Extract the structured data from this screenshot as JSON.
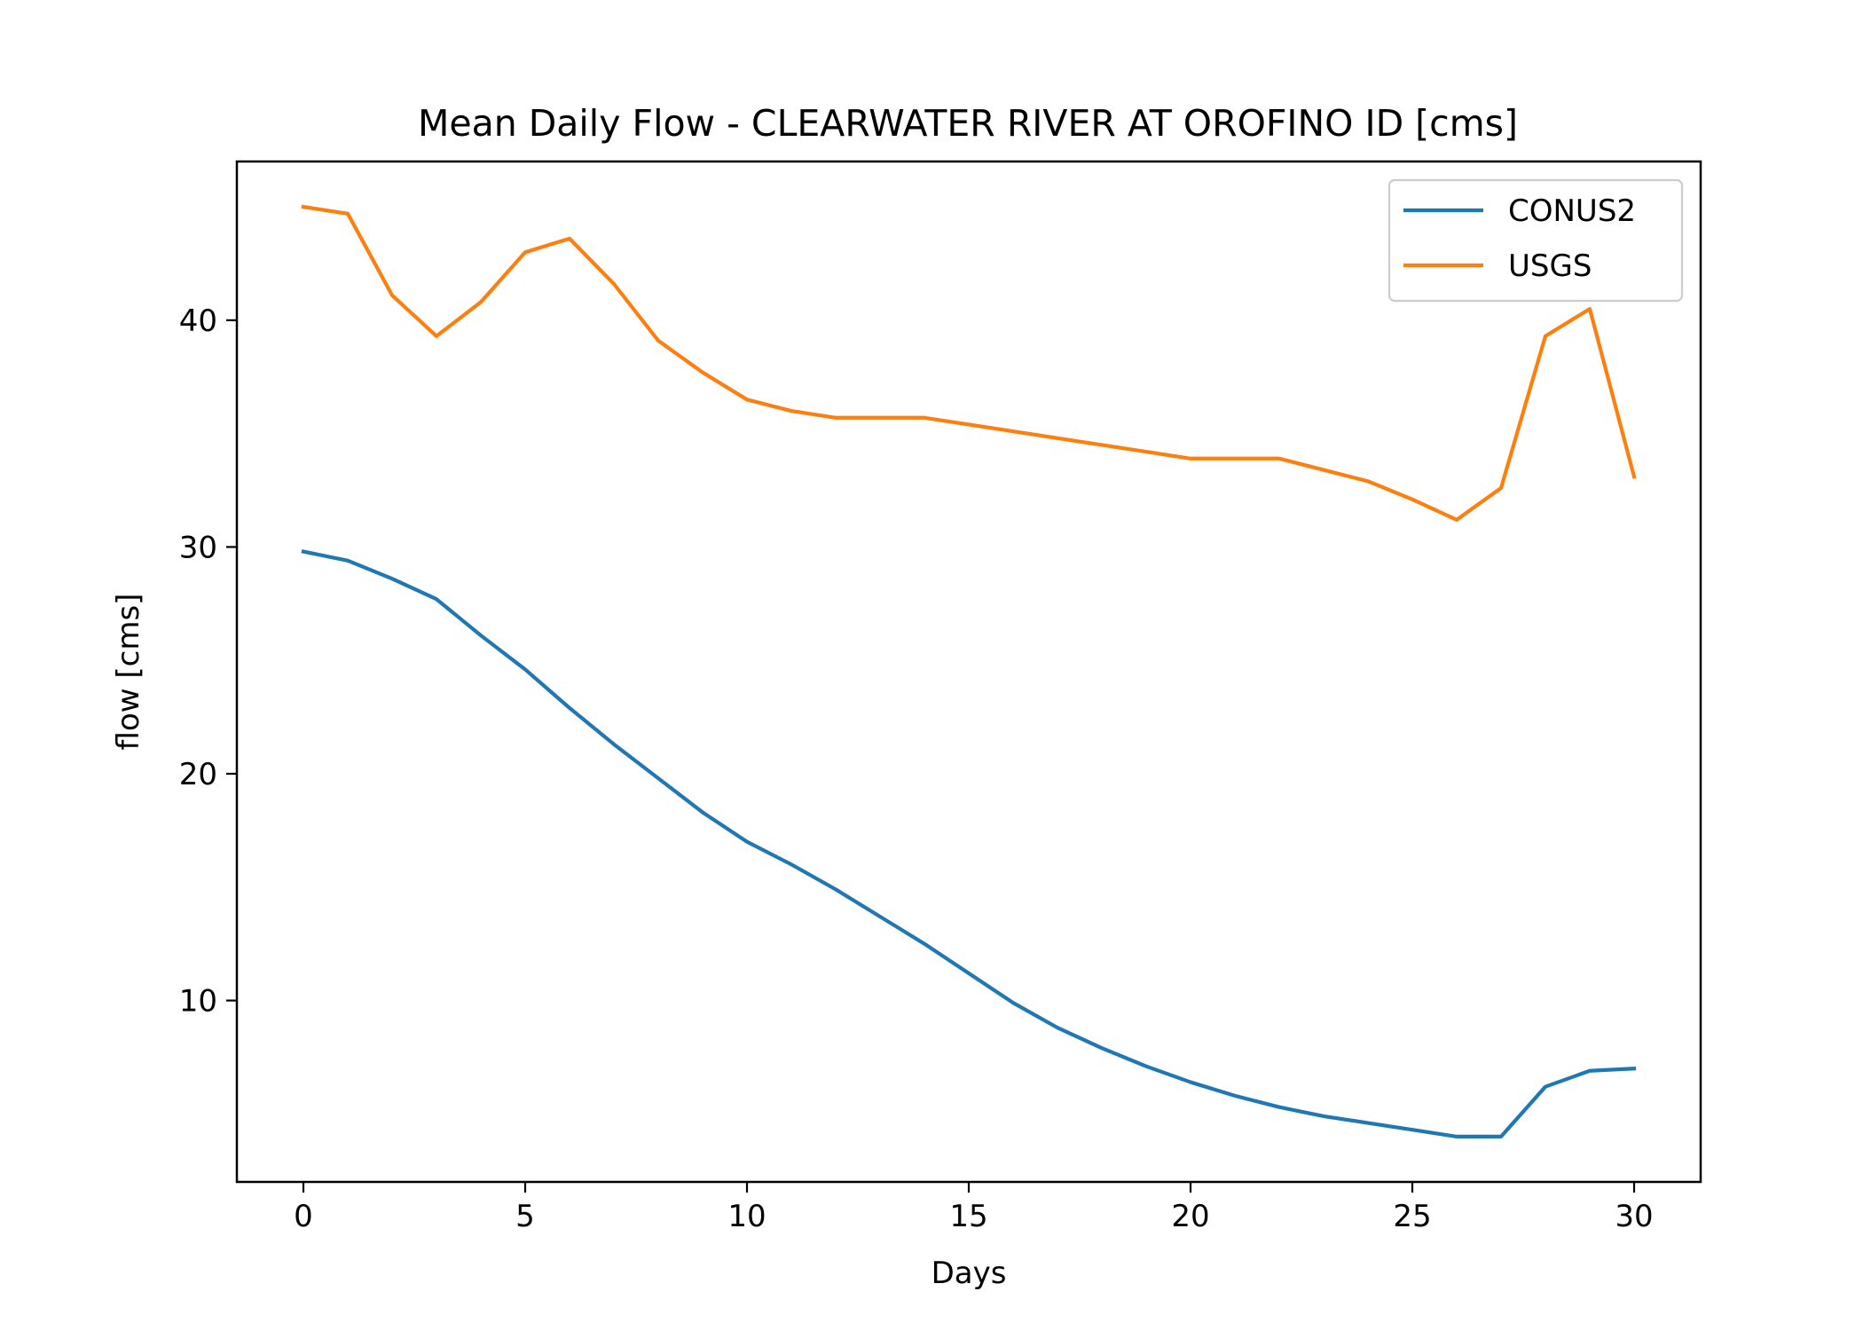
{
  "chart_data": {
    "type": "line",
    "title": "Mean Daily Flow - CLEARWATER RIVER AT OROFINO ID [cms]",
    "xlabel": "Days",
    "ylabel": "flow [cms]",
    "xlim": [
      -1.5,
      31.5
    ],
    "ylim": [
      2.0,
      47.0
    ],
    "xticks": [
      0,
      5,
      10,
      15,
      20,
      25,
      30
    ],
    "xtick_labels": [
      "0",
      "5",
      "10",
      "15",
      "20",
      "25",
      "30"
    ],
    "yticks": [
      10,
      20,
      30,
      40
    ],
    "ytick_labels": [
      "10",
      "20",
      "30",
      "40"
    ],
    "grid": false,
    "legend_position": "top-right",
    "x": [
      0,
      1,
      2,
      3,
      4,
      5,
      6,
      7,
      8,
      9,
      10,
      11,
      12,
      13,
      14,
      15,
      16,
      17,
      18,
      19,
      20,
      21,
      22,
      23,
      24,
      25,
      26,
      27,
      28,
      29,
      30
    ],
    "series": [
      {
        "name": "CONUS2",
        "color": "#1f77b4",
        "values": [
          29.8,
          29.4,
          28.6,
          27.7,
          26.1,
          24.6,
          22.9,
          21.3,
          19.8,
          18.3,
          17.0,
          16.0,
          14.9,
          13.7,
          12.5,
          11.2,
          9.9,
          8.8,
          7.9,
          7.1,
          6.4,
          5.8,
          5.3,
          4.9,
          4.6,
          4.3,
          4.0,
          4.0,
          6.2,
          6.9,
          7.0
        ]
      },
      {
        "name": "USGS",
        "color": "#ff7f0e",
        "values": [
          45.0,
          44.7,
          41.1,
          39.3,
          40.8,
          43.0,
          43.6,
          41.6,
          39.1,
          37.7,
          36.5,
          36.0,
          35.7,
          35.7,
          35.7,
          35.4,
          35.1,
          34.8,
          34.5,
          34.2,
          33.9,
          33.9,
          33.9,
          33.4,
          32.9,
          32.1,
          31.2,
          32.6,
          39.3,
          40.5,
          33.1
        ]
      }
    ]
  }
}
